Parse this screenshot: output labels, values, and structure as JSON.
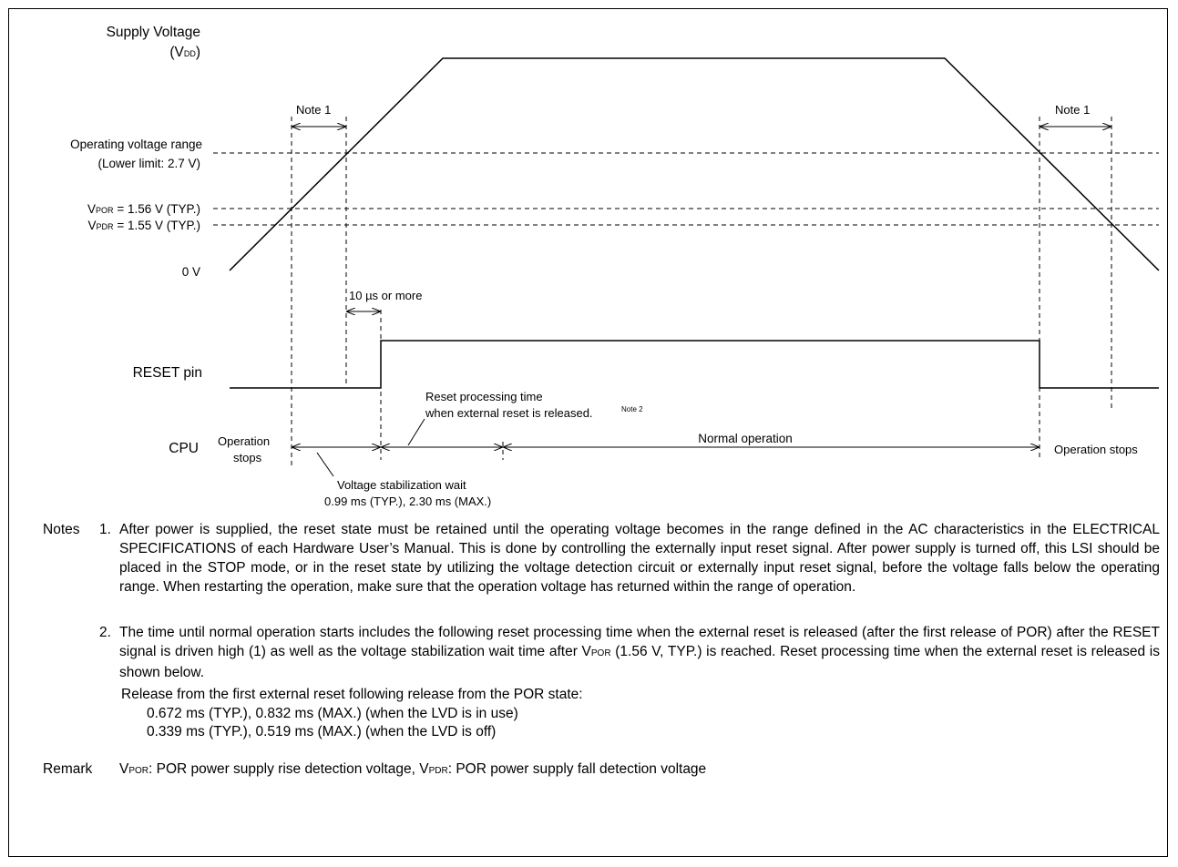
{
  "diagram": {
    "labels": {
      "supply_voltage": "Supply Voltage",
      "vdd": {
        "pre": "(V",
        "sub": "DD",
        "post": ")"
      },
      "op_range": "Operating voltage range",
      "lower_limit": "(Lower limit: 2.7 V)",
      "vpor": {
        "main": "V",
        "sub": "POR",
        "rest": " = 1.56 V (TYP.)"
      },
      "vpdr": {
        "main": "V",
        "sub": "PDR",
        "rest": " = 1.55 V (TYP.)"
      },
      "zero_v": "0 V",
      "reset_pin": "RESET pin",
      "cpu": "CPU",
      "note1_left": "Note 1",
      "note1_right": "Note 1",
      "ten_us": "10 µs or more",
      "reset_proc_1": "Reset processing time",
      "reset_proc_2": "when external reset is released.",
      "note2_sup": "Note 2",
      "normal_operation": "Normal operation",
      "op_stops_left_1": "Operation",
      "op_stops_left_2": "stops",
      "op_stops_right": "Operation stops",
      "vstab_1": "Voltage stabilization wait",
      "vstab_2": "0.99 ms (TYP.), 2.30 ms (MAX.)"
    }
  },
  "notes": {
    "label": "Notes",
    "n1_num": "1.",
    "n1_text": "After power is supplied, the reset state must be retained until the operating voltage becomes in the range defined in the AC characteristics in the ELECTRICAL SPECIFICATIONS of each Hardware User’s Manual. This is done by controlling the externally input reset signal. After power supply is turned off, this LSI should be placed in the STOP mode, or in the reset state by utilizing the voltage detection circuit or externally input reset signal, before the voltage falls below the operating range. When restarting the operation, make sure that the operation voltage has returned within the range of operation.",
    "n2_num": "2.",
    "n2_text_a": "The time until normal operation starts includes the following reset processing time when the external reset is released (after the first release of POR) after the RESET signal is driven high (1) as well as the voltage stabilization wait time after V",
    "n2_sub": "POR",
    "n2_text_b": " (1.56 V, TYP.) is reached. Reset processing time when the external reset is released is shown below.",
    "release_header": "Release from the first external reset following release from the POR state:",
    "release_line1": "0.672 ms (TYP.), 0.832 ms (MAX.) (when the LVD is in use)",
    "release_line2": "0.339 ms (TYP.), 0.519 ms (MAX.) (when the LVD is off)"
  },
  "remark": {
    "label": "Remark",
    "v1": "V",
    "s1": "POR",
    "t1": ": POR power supply rise detection voltage, ",
    "v2": "V",
    "s2": "PDR",
    "t2": ": POR power supply fall detection voltage"
  }
}
